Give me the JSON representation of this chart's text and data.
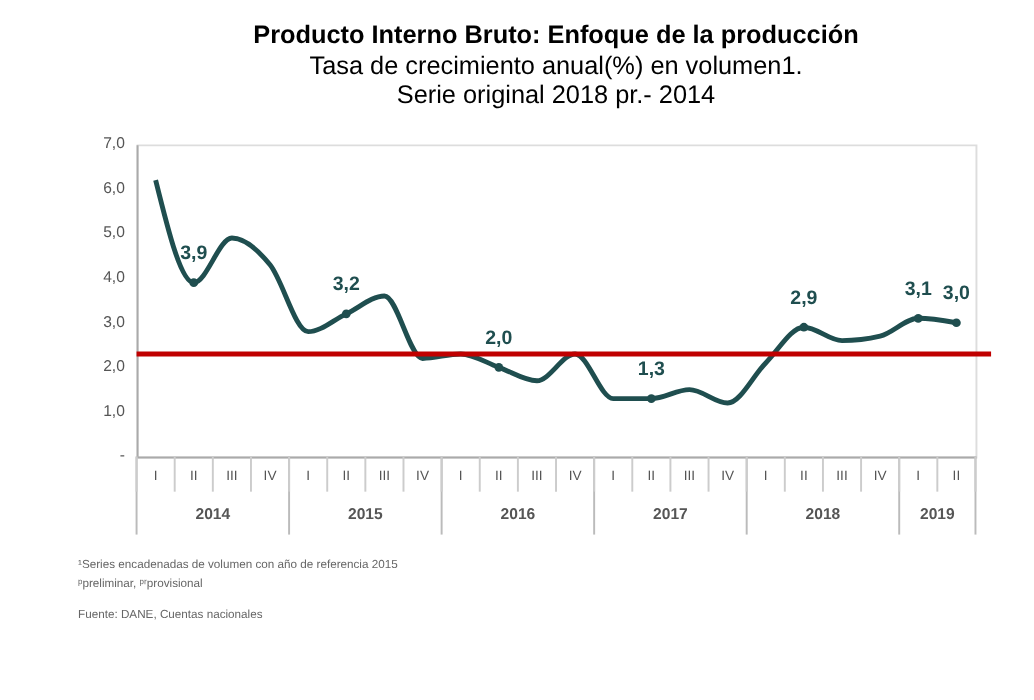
{
  "chart_data": {
    "type": "line",
    "title": "Producto Interno Bruto: Enfoque de la producción",
    "subtitle": "Tasa de crecimiento anual(%) en volumen1.\nSerie original 2018 pr.- 2014",
    "categories": [
      "I",
      "II",
      "III",
      "IV",
      "I",
      "II",
      "III",
      "IV",
      "I",
      "II",
      "III",
      "IV",
      "I",
      "II",
      "III",
      "IV",
      "I",
      "II",
      "III",
      "IV",
      "I",
      "II"
    ],
    "series": [
      {
        "color": "#1f4e4f",
        "values": [
          6.2,
          3.9,
          4.9,
          4.3,
          2.8,
          3.2,
          3.6,
          2.2,
          2.3,
          2.0,
          1.7,
          2.3,
          1.3,
          1.3,
          1.5,
          1.2,
          2.1,
          2.9,
          2.6,
          2.7,
          3.1,
          3.0
        ],
        "value_labels": [
          null,
          "3,9",
          null,
          null,
          null,
          "3,2",
          null,
          null,
          null,
          "2,0",
          null,
          null,
          null,
          "1,3",
          null,
          null,
          null,
          "2,9",
          null,
          null,
          "3,1",
          "3,0"
        ]
      }
    ],
    "ylim": [
      0,
      7
    ],
    "yticks": [
      {
        "value": 0,
        "label": "-"
      },
      {
        "value": 1,
        "label": "1,0"
      },
      {
        "value": 2,
        "label": "2,0"
      },
      {
        "value": 3,
        "label": "3,0"
      },
      {
        "value": 4,
        "label": "4,0"
      },
      {
        "value": 5,
        "label": "5,0"
      },
      {
        "value": 6,
        "label": "6,0"
      },
      {
        "value": 7,
        "label": "7,0"
      }
    ],
    "ref_lines": [
      {
        "axis": "y",
        "value": 2.3,
        "color": "#c00000"
      }
    ],
    "annotations": [
      "2014",
      "2015",
      "2016",
      "2017",
      "2018",
      "2019",
      "¹Series encadenadas de volumen con año de referencia 2015",
      "ᵖpreliminar, ᵖʳprovisional",
      "Fuente: DANE, Cuentas nacionales"
    ],
    "grid": false,
    "marker": "none",
    "line_style": "solid"
  }
}
